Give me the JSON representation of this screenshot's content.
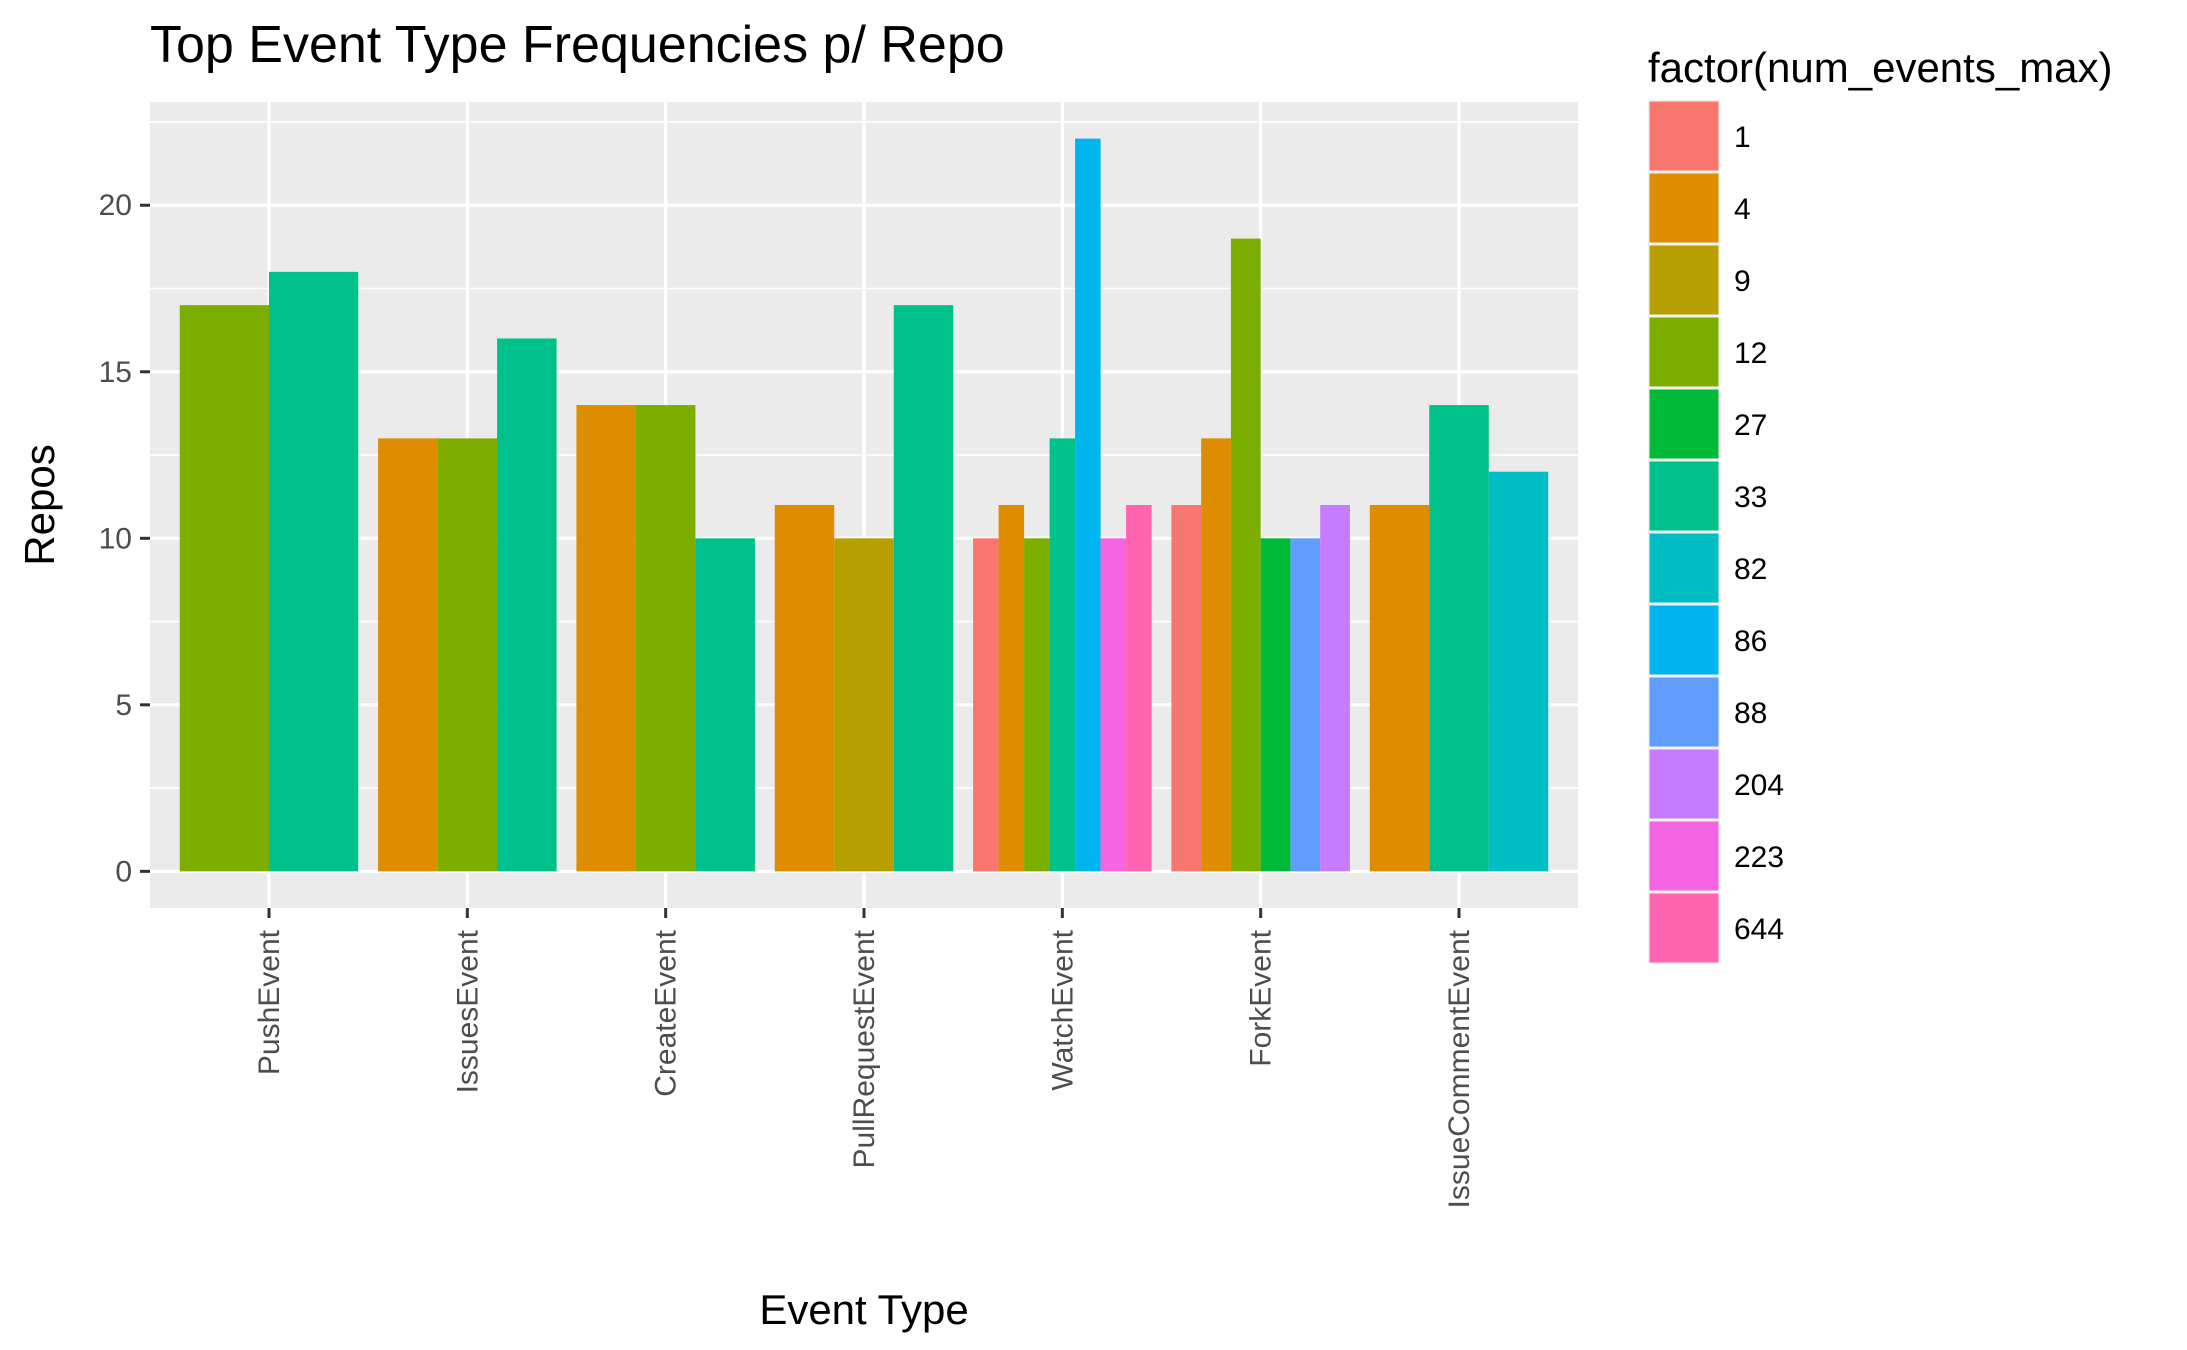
{
  "chart_data": {
    "type": "bar",
    "title": "Top Event Type Frequencies p/ Repo",
    "xlabel": "Event Type",
    "ylabel": "Repos",
    "ylim": [
      -1.1,
      23.1
    ],
    "yticks": [
      0,
      5,
      10,
      15,
      20
    ],
    "grid": true,
    "legend_position": "right",
    "legend_title": "factor(num_events_max)",
    "categories": [
      "PushEvent",
      "IssuesEvent",
      "CreateEvent",
      "PullRequestEvent",
      "WatchEvent",
      "ForkEvent",
      "IssueCommentEvent"
    ],
    "legend": [
      {
        "label": "1",
        "color": "#F8766D"
      },
      {
        "label": "4",
        "color": "#DE8C00"
      },
      {
        "label": "9",
        "color": "#B79F00"
      },
      {
        "label": "12",
        "color": "#7CAE00"
      },
      {
        "label": "27",
        "color": "#00BA38"
      },
      {
        "label": "33",
        "color": "#00C08B"
      },
      {
        "label": "82",
        "color": "#00BFC4"
      },
      {
        "label": "86",
        "color": "#00B4F0"
      },
      {
        "label": "88",
        "color": "#619CFF"
      },
      {
        "label": "204",
        "color": "#C77CFF"
      },
      {
        "label": "223",
        "color": "#F564E3"
      },
      {
        "label": "644",
        "color": "#FF64B0"
      }
    ],
    "groups": [
      {
        "category": "PushEvent",
        "bars": [
          {
            "series": "12",
            "value": 17
          },
          {
            "series": "33",
            "value": 18
          }
        ]
      },
      {
        "category": "IssuesEvent",
        "bars": [
          {
            "series": "4",
            "value": 13
          },
          {
            "series": "12",
            "value": 13
          },
          {
            "series": "33",
            "value": 16
          }
        ]
      },
      {
        "category": "CreateEvent",
        "bars": [
          {
            "series": "4",
            "value": 14
          },
          {
            "series": "12",
            "value": 14
          },
          {
            "series": "33",
            "value": 10
          }
        ]
      },
      {
        "category": "PullRequestEvent",
        "bars": [
          {
            "series": "4",
            "value": 11
          },
          {
            "series": "9",
            "value": 10
          },
          {
            "series": "33",
            "value": 17
          }
        ]
      },
      {
        "category": "WatchEvent",
        "bars": [
          {
            "series": "1",
            "value": 10
          },
          {
            "series": "4",
            "value": 11
          },
          {
            "series": "12",
            "value": 10
          },
          {
            "series": "33",
            "value": 13
          },
          {
            "series": "86",
            "value": 22
          },
          {
            "series": "223",
            "value": 10
          },
          {
            "series": "644",
            "value": 11
          }
        ]
      },
      {
        "category": "ForkEvent",
        "bars": [
          {
            "series": "1",
            "value": 11
          },
          {
            "series": "4",
            "value": 13
          },
          {
            "series": "12",
            "value": 19
          },
          {
            "series": "27",
            "value": 10
          },
          {
            "series": "88",
            "value": 10
          },
          {
            "series": "204",
            "value": 11
          }
        ]
      },
      {
        "category": "IssueCommentEvent",
        "bars": [
          {
            "series": "4",
            "value": 11
          },
          {
            "series": "33",
            "value": 14
          },
          {
            "series": "82",
            "value": 12
          }
        ]
      }
    ]
  }
}
